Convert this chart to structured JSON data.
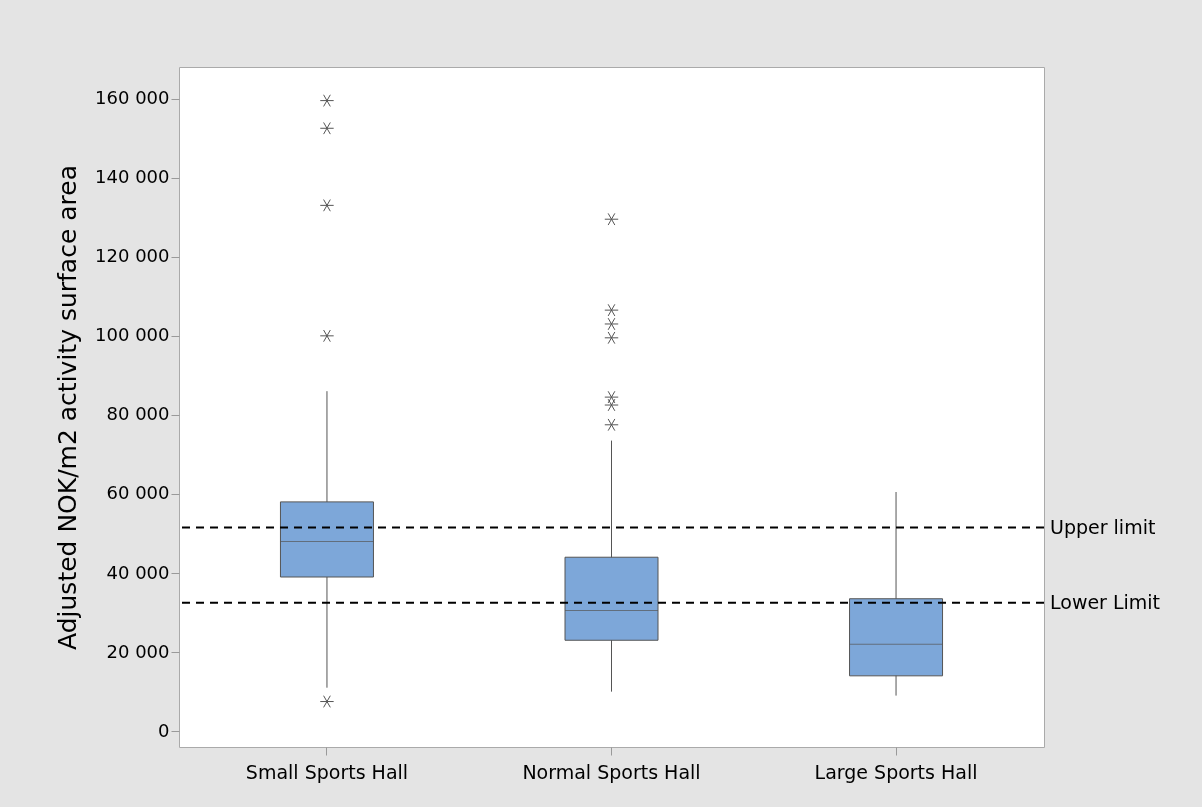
{
  "chart_data": {
    "type": "box",
    "ylabel": "Adjusted NOK/m2 activity surface area",
    "categories": [
      "Small Sports Hall",
      "Normal Sports Hall",
      "Large Sports Hall"
    ],
    "series": [
      {
        "color": "#7da7d9",
        "boxes": [
          {
            "low": 11000,
            "q1": 39000,
            "median": 48000,
            "q3": 58000,
            "high": 86000,
            "outliers": [
              7500,
              100000,
              133000,
              152500,
              159500
            ]
          },
          {
            "low": 10000,
            "q1": 23000,
            "median": 30500,
            "q3": 44000,
            "high": 73500,
            "outliers": [
              77500,
              82500,
              84500,
              99500,
              103000,
              106500,
              129500
            ]
          },
          {
            "low": 9000,
            "q1": 14000,
            "median": 22000,
            "q3": 33500,
            "high": 60500
          }
        ]
      }
    ],
    "ylim": [
      -4000,
      168000
    ],
    "yticks": [
      {
        "value": 0,
        "label": "0"
      },
      {
        "value": 20000,
        "label": "20 000"
      },
      {
        "value": 40000,
        "label": "40 000"
      },
      {
        "value": 60000,
        "label": "60 000"
      },
      {
        "value": 80000,
        "label": "80 000"
      },
      {
        "value": 100000,
        "label": "100 000"
      },
      {
        "value": 120000,
        "label": "120 000"
      },
      {
        "value": 140000,
        "label": "140 000"
      },
      {
        "value": 160000,
        "label": "160 000"
      }
    ],
    "ref_lines": [
      {
        "axis": "y",
        "value": 51500,
        "label": "Upper limit",
        "color": "#000000",
        "line_style": "dashed"
      },
      {
        "axis": "y",
        "value": 32500,
        "label": "Lower Limit",
        "color": "#000000",
        "line_style": "dashed"
      }
    ],
    "grid": false
  }
}
